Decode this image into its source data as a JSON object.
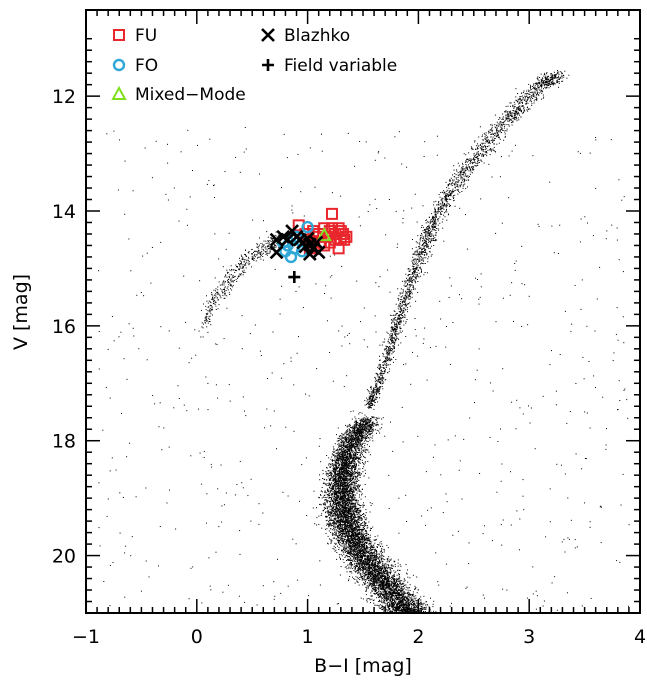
{
  "chart_data": {
    "type": "scatter",
    "title": "",
    "xlabel": "B−I [mag]",
    "ylabel": "V [mag]",
    "xlim": [
      -1,
      4
    ],
    "ylim": [
      21,
      10.5
    ],
    "y_inverted": true,
    "grid": false,
    "legend_placement": "top-left",
    "xticks": [
      "−1",
      "0",
      "1",
      "2",
      "3",
      "4"
    ],
    "yticks": [
      "12",
      "14",
      "16",
      "18",
      "20"
    ],
    "colors": {
      "fu": "#e8262c",
      "fo": "#2fa8d8",
      "mixed": "#80e020",
      "blazhko": "#000000",
      "field": "#000000",
      "stars": "#000000"
    },
    "legend": [
      {
        "key": "fu",
        "label": "FU",
        "marker": "square"
      },
      {
        "key": "fo",
        "label": "FO",
        "marker": "circle"
      },
      {
        "key": "mixed",
        "label": "Mixed−Mode",
        "marker": "triangle"
      },
      {
        "key": "blazhko",
        "label": "Blazhko",
        "marker": "x"
      },
      {
        "key": "field",
        "label": "Field variable",
        "marker": "plus"
      }
    ],
    "series": [
      {
        "key": "fu",
        "name": "FU",
        "points": [
          [
            1.22,
            14.05
          ],
          [
            1.05,
            14.35
          ],
          [
            1.1,
            14.4
          ],
          [
            1.15,
            14.3
          ],
          [
            1.18,
            14.45
          ],
          [
            1.2,
            14.35
          ],
          [
            1.25,
            14.4
          ],
          [
            1.28,
            14.3
          ],
          [
            1.3,
            14.5
          ],
          [
            1.32,
            14.4
          ],
          [
            1.35,
            14.45
          ],
          [
            1.0,
            14.5
          ],
          [
            1.05,
            14.55
          ],
          [
            1.12,
            14.55
          ],
          [
            1.15,
            14.6
          ],
          [
            1.25,
            14.5
          ],
          [
            1.28,
            14.65
          ],
          [
            0.92,
            14.25
          ],
          [
            1.08,
            14.45
          ],
          [
            1.2,
            14.55
          ],
          [
            1.3,
            14.35
          ],
          [
            1.33,
            14.5
          ],
          [
            1.02,
            14.65
          ],
          [
            0.98,
            14.4
          ],
          [
            1.22,
            14.3
          ]
        ]
      },
      {
        "key": "fo",
        "name": "FO",
        "points": [
          [
            0.78,
            14.55
          ],
          [
            0.82,
            14.6
          ],
          [
            0.85,
            14.8
          ],
          [
            0.88,
            14.65
          ],
          [
            0.9,
            14.45
          ],
          [
            0.93,
            14.5
          ],
          [
            0.95,
            14.7
          ],
          [
            1.0,
            14.28
          ],
          [
            0.8,
            14.7
          ],
          [
            0.87,
            14.5
          ]
        ]
      },
      {
        "key": "mixed",
        "name": "Mixed−Mode",
        "points": [
          [
            1.15,
            14.42
          ]
        ]
      },
      {
        "key": "blazhko",
        "name": "Blazhko",
        "points": [
          [
            0.72,
            14.5
          ],
          [
            0.72,
            14.72
          ],
          [
            0.78,
            14.45
          ],
          [
            0.82,
            14.5
          ],
          [
            0.86,
            14.35
          ],
          [
            0.9,
            14.45
          ],
          [
            0.93,
            14.5
          ],
          [
            0.96,
            14.55
          ],
          [
            0.98,
            14.62
          ],
          [
            1.0,
            14.48
          ],
          [
            1.02,
            14.58
          ],
          [
            1.05,
            14.65
          ],
          [
            1.08,
            14.55
          ],
          [
            1.02,
            14.75
          ],
          [
            1.1,
            14.72
          ]
        ]
      },
      {
        "key": "field",
        "name": "Field variable",
        "points": [
          [
            0.88,
            15.15
          ]
        ]
      }
    ],
    "background_stars": {
      "description_features": [
        "main sequence turnoff",
        "red giant branch",
        "horizontal branch",
        "field scatter"
      ],
      "main_sequence": {
        "x": [
          1.55,
          1.4,
          1.32,
          1.3,
          1.35,
          1.5,
          1.7,
          1.9,
          2.0
        ],
        "y": [
          17.6,
          18.0,
          18.5,
          19.0,
          19.5,
          20.0,
          20.5,
          21.0,
          21.2
        ]
      },
      "red_giant_branch": {
        "x": [
          1.55,
          1.65,
          1.75,
          1.85,
          1.95,
          2.05,
          2.15,
          2.3,
          2.5,
          2.7,
          2.9,
          3.1,
          3.25
        ],
        "y": [
          17.4,
          16.9,
          16.3,
          15.7,
          15.1,
          14.6,
          14.1,
          13.6,
          13.1,
          12.6,
          12.2,
          11.8,
          11.6
        ]
      },
      "horizontal_branch": {
        "x": [
          0.05,
          0.15,
          0.25,
          0.35,
          0.45,
          0.55,
          0.65,
          0.72
        ],
        "y": [
          15.95,
          15.6,
          15.3,
          15.05,
          14.85,
          14.7,
          14.6,
          14.55
        ]
      }
    }
  }
}
